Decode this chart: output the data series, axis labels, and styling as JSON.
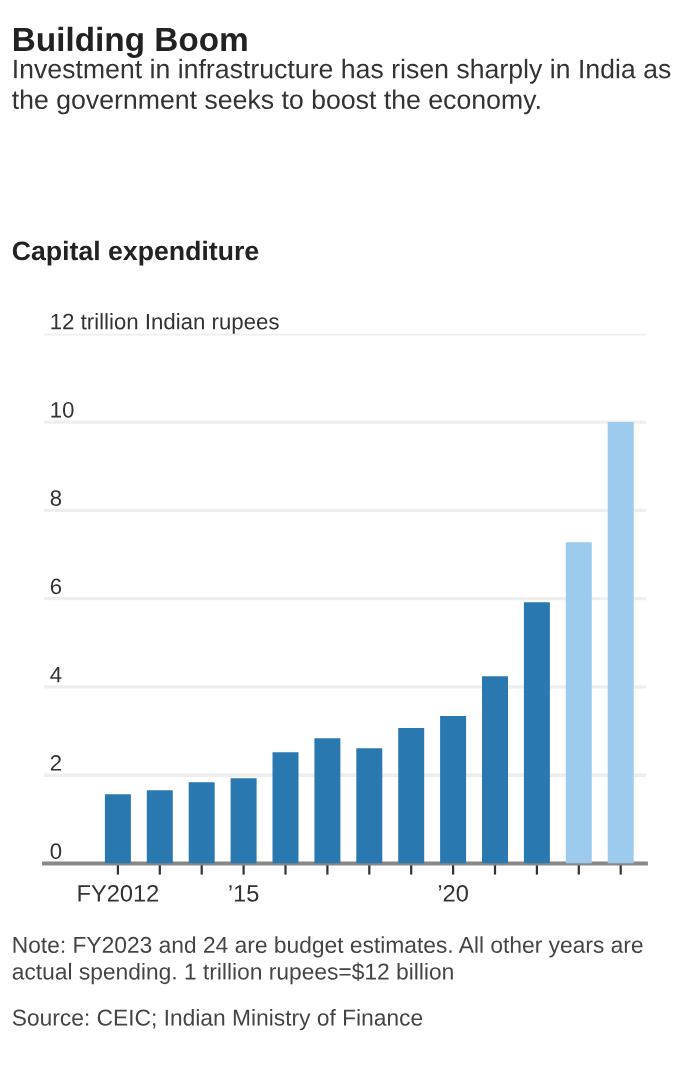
{
  "chart_data": {
    "type": "bar",
    "title": "Building Boom",
    "subtitle": "Investment in infrastructure has risen sharply in India as the government seeks to boost the economy.",
    "annotations": [
      "Capital expenditure",
      "Note: FY2023 and 24 are budget estimates. All other years are actual spending. 1 trillion rupees=$12 billion",
      "Source: CEIC; Indian Ministry of Finance"
    ],
    "categories": [
      "FY2012",
      null,
      null,
      "’15",
      null,
      null,
      null,
      null,
      "’20",
      null,
      null,
      null,
      null
    ],
    "values": [
      1.57,
      1.66,
      1.84,
      1.93,
      2.52,
      2.84,
      2.61,
      3.07,
      3.34,
      4.24,
      5.92,
      7.28,
      10.0
    ],
    "colors": [
      "#2a78b0",
      "#2a78b0",
      "#2a78b0",
      "#2a78b0",
      "#2a78b0",
      "#2a78b0",
      "#2a78b0",
      "#2a78b0",
      "#2a78b0",
      "#2a78b0",
      "#2a78b0",
      "#9dcbee",
      "#9dcbee"
    ],
    "ylim": [
      0,
      12
    ],
    "yticks": [
      0,
      2,
      4,
      6,
      8,
      10,
      {
        "value": 12,
        "label": "12 trillion Indian rupees"
      }
    ],
    "grid": "y",
    "legend": false
  }
}
